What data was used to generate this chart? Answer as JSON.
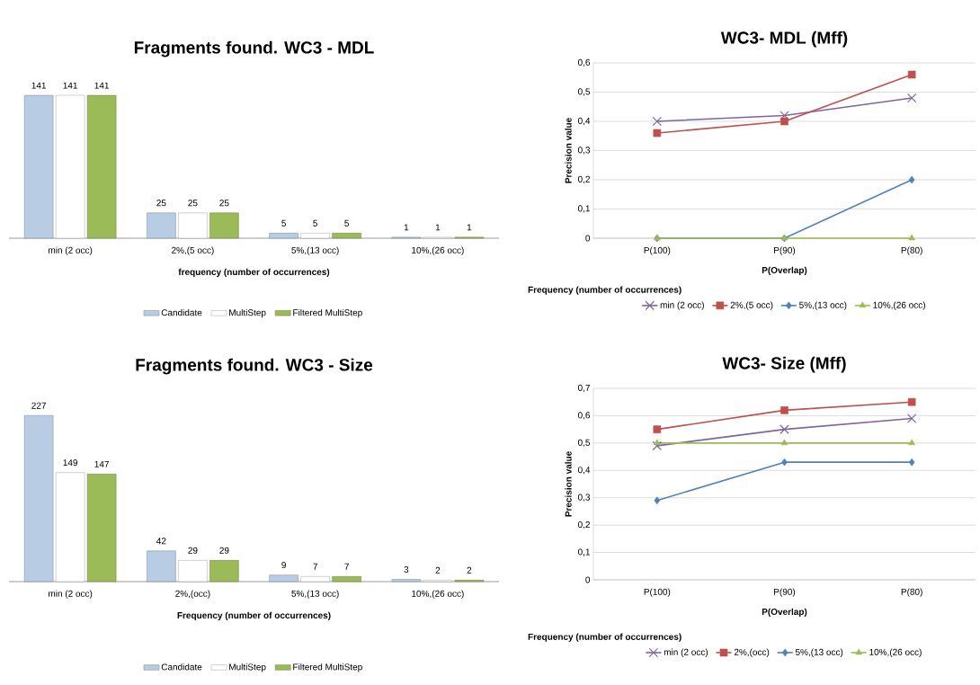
{
  "chart_data": [
    {
      "type": "bar",
      "title": "Fragments found. WC3 - MDL",
      "xlabel": "frequency (number of occurrences)",
      "categories": [
        "min (2 occ)",
        "2%,(5 occ)",
        "5%,(13 occ)",
        "10%,(26 occ)"
      ],
      "data_labels": true,
      "legend": "bottom",
      "series": [
        {
          "name": "Candidate",
          "color": "#b8cce4",
          "values": [
            141,
            25,
            5,
            1
          ]
        },
        {
          "name": "MultiStep",
          "color": "#ffffff",
          "values": [
            141,
            25,
            5,
            1
          ]
        },
        {
          "name": "Filtered MultiStep",
          "color": "#9bbb59",
          "values": [
            141,
            25,
            5,
            1
          ]
        }
      ]
    },
    {
      "type": "line",
      "title": "WC3- MDL (Mff)",
      "xlabel": "P(Overlap)",
      "ylabel": "Precision value",
      "legend_title": "Frequency (number of occurrences)",
      "categories": [
        "P(100)",
        "P(90)",
        "P(80)"
      ],
      "ylim": [
        0,
        0.6
      ],
      "grid": "y",
      "legend": "bottom",
      "yticks": [
        {
          "value": 0,
          "label": "0"
        },
        {
          "value": 0.1,
          "label": "0,1"
        },
        {
          "value": 0.2,
          "label": "0,2"
        },
        {
          "value": 0.3,
          "label": "0,3"
        },
        {
          "value": 0.4,
          "label": "0,4"
        },
        {
          "value": 0.5,
          "label": "0,5"
        },
        {
          "value": 0.6,
          "label": "0,6"
        }
      ],
      "series": [
        {
          "name": "min (2 occ)",
          "color": "#8064a2",
          "marker": "cross",
          "values": [
            0.4,
            0.42,
            0.48
          ]
        },
        {
          "name": "2%,(5 occ)",
          "color": "#c0504d",
          "marker": "square",
          "values": [
            0.36,
            0.4,
            0.56
          ]
        },
        {
          "name": "5%,(13 occ)",
          "color": "#4f81bd",
          "marker": "diamond",
          "values": [
            0,
            0,
            0.2
          ]
        },
        {
          "name": "10%,(26 occ)",
          "color": "#9bbb59",
          "marker": "triangle",
          "values": [
            0,
            0,
            0
          ]
        }
      ]
    },
    {
      "type": "bar",
      "title": "Fragments found. WC3 - Size",
      "xlabel": "Frequency (number of occurrences)",
      "categories": [
        "min (2 occ)",
        "2%,(occ)",
        "5%,(13 occ)",
        "10%,(26 occ)"
      ],
      "data_labels": true,
      "legend": "bottom",
      "series": [
        {
          "name": "Candidate",
          "color": "#b8cce4",
          "values": [
            227,
            42,
            9,
            3
          ]
        },
        {
          "name": "MultiStep",
          "color": "#ffffff",
          "values": [
            149,
            29,
            7,
            2
          ]
        },
        {
          "name": "Filtered MultiStep",
          "color": "#9bbb59",
          "values": [
            147,
            29,
            7,
            2
          ]
        }
      ]
    },
    {
      "type": "line",
      "title": "WC3- Size (Mff)",
      "xlabel": "P(Overlap)",
      "ylabel": "Precision value",
      "legend_title": "Frequency (number of occurrences)",
      "categories": [
        "P(100)",
        "P(90)",
        "P(80)"
      ],
      "ylim": [
        0,
        0.7
      ],
      "grid": "y",
      "legend": "bottom",
      "yticks": [
        {
          "value": 0,
          "label": "0"
        },
        {
          "value": 0.1,
          "label": "0,1"
        },
        {
          "value": 0.2,
          "label": "0,2"
        },
        {
          "value": 0.3,
          "label": "0,3"
        },
        {
          "value": 0.4,
          "label": "0,4"
        },
        {
          "value": 0.5,
          "label": "0,5"
        },
        {
          "value": 0.6,
          "label": "0,6"
        },
        {
          "value": 0.7,
          "label": "0,7"
        }
      ],
      "series": [
        {
          "name": "min (2 occ)",
          "color": "#8064a2",
          "marker": "cross",
          "values": [
            0.49,
            0.55,
            0.59
          ]
        },
        {
          "name": "2%,(occ)",
          "color": "#c0504d",
          "marker": "square",
          "values": [
            0.55,
            0.62,
            0.65
          ]
        },
        {
          "name": "5%,(13 occ)",
          "color": "#4f81bd",
          "marker": "diamond",
          "values": [
            0.29,
            0.43,
            0.43
          ]
        },
        {
          "name": "10%,(26 occ)",
          "color": "#9bbb59",
          "marker": "triangle",
          "values": [
            0.5,
            0.5,
            0.5
          ]
        }
      ]
    }
  ]
}
